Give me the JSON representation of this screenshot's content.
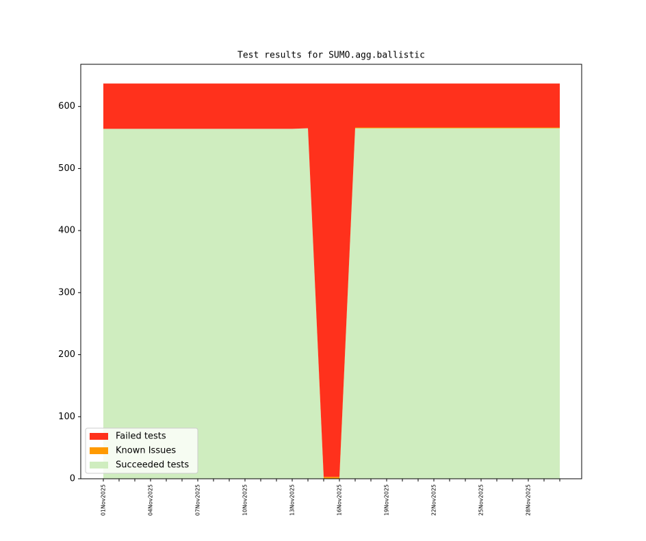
{
  "chart_data": {
    "type": "stacked_area",
    "title": "Test results for SUMO.agg.ballistic",
    "categories": [
      "01Nov2025",
      null,
      null,
      "04Nov2025",
      null,
      null,
      "07Nov2025",
      null,
      null,
      "10Nov2025",
      null,
      null,
      "13Nov2025",
      null,
      null,
      "16Nov2025",
      null,
      null,
      "19Nov2025",
      null,
      null,
      "22Nov2025",
      null,
      null,
      "25Nov2025",
      null,
      null,
      "28Nov2025",
      null,
      null
    ],
    "series": [
      {
        "name": "Failed tests",
        "color": "#ff311c",
        "values": [
          73,
          73,
          73,
          73,
          73,
          73,
          73,
          73,
          73,
          73,
          73,
          73,
          73,
          72,
          634,
          634,
          71,
          71,
          71,
          71,
          71,
          71,
          71,
          71,
          71,
          71,
          71,
          71,
          71,
          71
        ]
      },
      {
        "name": "Known Issues",
        "color": "#ff9a00",
        "values": [
          0,
          0,
          0,
          0,
          0,
          0,
          0,
          0,
          0,
          0,
          0,
          0,
          0,
          0,
          3,
          3,
          1,
          1,
          1,
          1,
          1,
          1,
          1,
          1,
          1,
          1,
          1,
          1,
          1,
          1
        ]
      },
      {
        "name": "Succeeded tests",
        "color": "#cfedbf",
        "values": [
          564,
          564,
          564,
          564,
          564,
          564,
          564,
          564,
          564,
          564,
          564,
          564,
          564,
          565,
          0,
          0,
          565,
          565,
          565,
          565,
          565,
          565,
          565,
          565,
          565,
          565,
          565,
          565,
          565,
          565
        ]
      }
    ],
    "ylim": [
      0,
      668
    ],
    "yticks": [
      0,
      100,
      200,
      300,
      400,
      500,
      600
    ],
    "legend": "lower left"
  }
}
